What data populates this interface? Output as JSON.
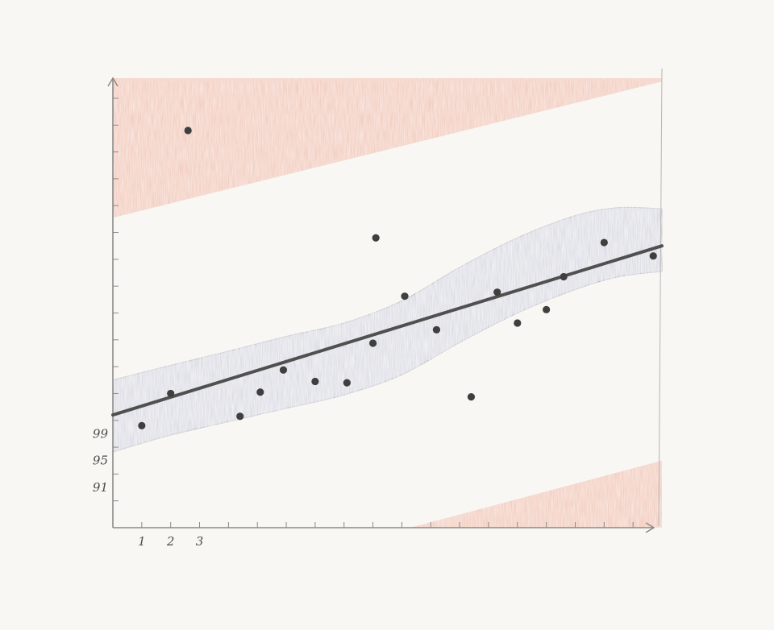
{
  "chart_data": {
    "type": "scatter",
    "title": "",
    "xlabel": "",
    "ylabel": "",
    "x_tick_labels": [
      "1",
      "2",
      "3"
    ],
    "y_tick_labels": [
      "99",
      "95",
      "91"
    ],
    "grid": false,
    "legend": "none",
    "xlim": [
      0,
      19
    ],
    "ylim": [
      85,
      152
    ],
    "points": {
      "x": [
        1,
        2,
        2.6,
        4.4,
        5.1,
        5.9,
        7.0,
        8.1,
        9.0,
        9.1,
        10.1,
        11.2,
        12.4,
        13.3,
        14.0,
        15.0,
        15.6,
        17.0,
        18.7
      ],
      "y": [
        100.2,
        105.0,
        144.2,
        101.6,
        105.2,
        108.5,
        106.8,
        106.6,
        112.5,
        128.2,
        119.5,
        114.5,
        104.5,
        120.1,
        115.5,
        117.5,
        122.4,
        127.5,
        125.5
      ]
    },
    "regression_line": {
      "x": [
        0,
        19
      ],
      "y": [
        101.8,
        127.0
      ]
    },
    "confidence_band": {
      "x": [
        0,
        2,
        4,
        6,
        8,
        10,
        12,
        14,
        16,
        17.5,
        19
      ],
      "upper": [
        107.0,
        109.2,
        111.3,
        113.5,
        115.5,
        118.8,
        123.8,
        128.2,
        131.5,
        132.7,
        132.5
      ],
      "lower": [
        96.3,
        98.8,
        100.8,
        102.8,
        104.8,
        107.8,
        112.6,
        117.0,
        120.5,
        122.4,
        123.2
      ]
    },
    "upper_region": {
      "x": [
        0,
        19
      ],
      "boundary_y": [
        131.2,
        151.5
      ]
    },
    "lower_region": {
      "x": [
        10.3,
        19
      ],
      "boundary_y": [
        85,
        95.0
      ]
    },
    "colors": {
      "points": "#3f3f3f",
      "line": "#505050",
      "band": "#c9cbd9",
      "outlier_region": "#ec9a7a",
      "axis": "#8a8a8a"
    }
  }
}
